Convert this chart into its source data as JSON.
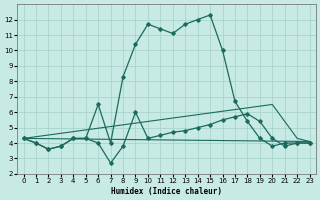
{
  "xlabel": "Humidex (Indice chaleur)",
  "xlim": [
    -0.5,
    23.5
  ],
  "ylim": [
    2,
    13
  ],
  "yticks": [
    2,
    3,
    4,
    5,
    6,
    7,
    8,
    9,
    10,
    11,
    12
  ],
  "xticks": [
    0,
    1,
    2,
    3,
    4,
    5,
    6,
    7,
    8,
    9,
    10,
    11,
    12,
    13,
    14,
    15,
    16,
    17,
    18,
    19,
    20,
    21,
    22,
    23
  ],
  "bg_color": "#c8eae4",
  "grid_color": "#a8d4cc",
  "line_color": "#1a6a5e",
  "series": [
    {
      "x": [
        0,
        1,
        2,
        3,
        4,
        5,
        6,
        7,
        8,
        9,
        10,
        11,
        12,
        13,
        14,
        15,
        16,
        17,
        18,
        19,
        20,
        21,
        22,
        23
      ],
      "y": [
        4.3,
        4.0,
        3.6,
        3.8,
        4.3,
        4.3,
        6.5,
        4.0,
        8.3,
        10.4,
        11.7,
        11.4,
        11.1,
        11.7,
        12.0,
        12.3,
        10.0,
        6.7,
        5.4,
        4.3,
        3.8,
        4.0,
        4.0,
        4.0
      ],
      "marker": true
    },
    {
      "x": [
        0,
        1,
        2,
        3,
        4,
        5,
        6,
        7,
        8,
        9,
        10,
        11,
        12,
        13,
        14,
        15,
        16,
        17,
        18,
        19,
        20,
        21,
        22,
        23
      ],
      "y": [
        4.3,
        4.0,
        3.6,
        3.8,
        4.3,
        4.3,
        4.0,
        2.7,
        3.8,
        6.0,
        4.3,
        4.5,
        4.7,
        4.8,
        5.0,
        5.2,
        5.5,
        5.7,
        5.9,
        5.4,
        4.3,
        3.8,
        4.0,
        4.0
      ],
      "marker": true
    },
    {
      "x": [
        0,
        23
      ],
      "y": [
        4.3,
        4.1
      ],
      "marker": false
    },
    {
      "x": [
        0,
        20,
        21,
        22,
        23
      ],
      "y": [
        4.3,
        6.5,
        5.4,
        4.3,
        4.1
      ],
      "marker": false
    }
  ]
}
